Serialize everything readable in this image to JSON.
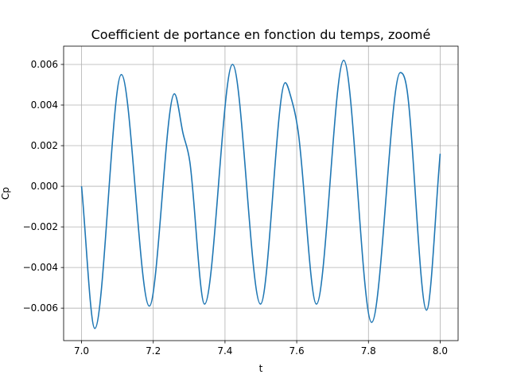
{
  "chart_data": {
    "type": "line",
    "title": "Coefficient de portance en fonction du temps, zoomé",
    "xlabel": "t",
    "ylabel": "Cp",
    "xlim": [
      6.95,
      8.05
    ],
    "ylim": [
      -0.0076,
      0.0069
    ],
    "grid": true,
    "xticks": [
      {
        "value": 7.0,
        "label": "7.0"
      },
      {
        "value": 7.2,
        "label": "7.2"
      },
      {
        "value": 7.4,
        "label": "7.4"
      },
      {
        "value": 7.6,
        "label": "7.6"
      },
      {
        "value": 7.8,
        "label": "7.8"
      },
      {
        "value": 8.0,
        "label": "8.0"
      }
    ],
    "yticks": [
      {
        "value": -0.006,
        "label": "−0.006"
      },
      {
        "value": -0.004,
        "label": "−0.004"
      },
      {
        "value": -0.002,
        "label": "−0.002"
      },
      {
        "value": 0.0,
        "label": "0.000"
      },
      {
        "value": 0.002,
        "label": "0.002"
      },
      {
        "value": 0.004,
        "label": "0.004"
      },
      {
        "value": 0.006,
        "label": "0.006"
      }
    ],
    "series": [
      {
        "color": "#1f77b4",
        "x": [
          7.0,
          7.037,
          7.111,
          7.189,
          7.259,
          7.283,
          7.302,
          7.343,
          7.421,
          7.499,
          7.568,
          7.582,
          7.604,
          7.655,
          7.731,
          7.809,
          7.889,
          7.908,
          7.962,
          8.0
        ],
        "y": [
          0.0,
          -0.007,
          0.0055,
          -0.0059,
          0.00455,
          0.0026,
          0.0012,
          -0.0058,
          0.006,
          -0.0058,
          0.0051,
          0.0045,
          0.0027,
          -0.0058,
          0.0062,
          -0.0067,
          0.0056,
          0.0047,
          -0.0061,
          0.0016
        ]
      }
    ]
  }
}
